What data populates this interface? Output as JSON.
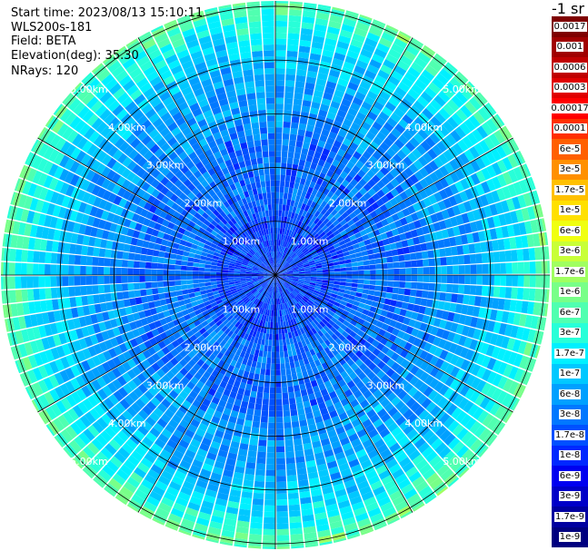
{
  "header": {
    "start_time": "Start time: 2023/08/13 15:10:11",
    "instrument": "WLS200s-181",
    "field": "Field: BETA",
    "elevation": "Elevation(deg): 35.30",
    "nrays": "NRays: 120"
  },
  "colorbar": {
    "unit_label": "-1 sr",
    "labels": [
      "0.0017",
      "0.001",
      "0.0006",
      "0.0003",
      "0.00017",
      "0.0001",
      "6e-5",
      "3e-5",
      "1.7e-5",
      "1e-5",
      "6e-6",
      "3e-6",
      "1.7e-6",
      "1e-6",
      "6e-7",
      "3e-7",
      "1.7e-7",
      "1e-7",
      "6e-8",
      "3e-8",
      "1.7e-8",
      "1e-8",
      "6e-9",
      "3e-9",
      "1.7e-9",
      "1e-9"
    ],
    "colors": [
      "#7f0000",
      "#a00000",
      "#c00000",
      "#e00000",
      "#ff0000",
      "#ff3000",
      "#ff6000",
      "#ff9000",
      "#ffc000",
      "#ffe000",
      "#f0ff10",
      "#c8ff38",
      "#a0ff60",
      "#78ff88",
      "#50ffb0",
      "#28ffd8",
      "#00f0ff",
      "#00c8ff",
      "#00a0ff",
      "#0078ff",
      "#0050ff",
      "#0028ff",
      "#0000f0",
      "#0000c8",
      "#0000a0",
      "#000080"
    ]
  },
  "chart_data": {
    "type": "heatmap",
    "projection": "polar (PPI scan)",
    "field": "BETA",
    "units": "-1 sr",
    "elevation_deg": 35.3,
    "n_rays": 120,
    "range_ring_labels": [
      "1.00km",
      "2.00km",
      "3.00km",
      "4.00km",
      "5.00km"
    ],
    "range_rings_km": [
      1,
      2,
      3,
      4,
      5
    ],
    "max_range_km": 5.1,
    "color_scale": "log",
    "value_range": [
      1e-09,
      0.0017
    ],
    "radial_profile": [
      {
        "range_km": 0.5,
        "value": 1.7e-08
      },
      {
        "range_km": 1.0,
        "value": 1.7e-08
      },
      {
        "range_km": 1.5,
        "value": 3e-08
      },
      {
        "range_km": 2.0,
        "value": 3e-08
      },
      {
        "range_km": 2.5,
        "value": 3e-08
      },
      {
        "range_km": 3.0,
        "value": 6e-08
      },
      {
        "range_km": 3.5,
        "value": 6e-08
      },
      {
        "range_km": 4.0,
        "value": 1e-07
      },
      {
        "range_km": 4.5,
        "value": 1.7e-07
      },
      {
        "range_km": 5.0,
        "value": 6e-07
      }
    ]
  }
}
